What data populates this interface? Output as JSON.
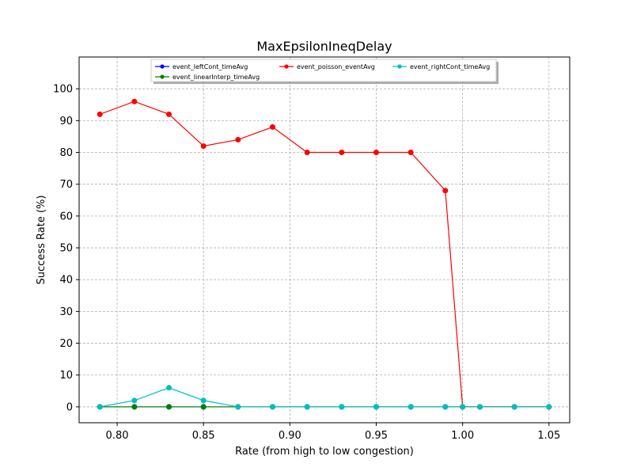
{
  "chart_data": {
    "type": "line",
    "title": "MaxEpsilonIneqDelay",
    "xlabel": "Rate (from high to low congestion)",
    "ylabel": "Success Rate (%)",
    "xlim": [
      0.778,
      1.062
    ],
    "ylim": [
      -5,
      110
    ],
    "x_ticks": [
      "0.80",
      "0.85",
      "0.90",
      "0.95",
      "1.00",
      "1.05"
    ],
    "x_tick_values": [
      0.8,
      0.85,
      0.9,
      0.95,
      1.0,
      1.05
    ],
    "y_ticks": [
      "0",
      "10",
      "20",
      "30",
      "40",
      "50",
      "60",
      "70",
      "80",
      "90",
      "100"
    ],
    "y_tick_values": [
      0,
      10,
      20,
      30,
      40,
      50,
      60,
      70,
      80,
      90,
      100
    ],
    "grid": true,
    "legend_position": "top-center",
    "x": [
      0.79,
      0.81,
      0.83,
      0.85,
      0.87,
      0.89,
      0.91,
      0.93,
      0.95,
      0.97,
      0.99,
      1.0,
      1.01,
      1.03,
      1.05
    ],
    "series": [
      {
        "name": "event_leftCont_timeAvg",
        "color": "#0000ff",
        "values": [
          0,
          0,
          0,
          0,
          0,
          0,
          0,
          0,
          0,
          0,
          0,
          0,
          0,
          0,
          0
        ]
      },
      {
        "name": "event_linearInterp_timeAvg",
        "color": "#008000",
        "values": [
          0,
          0,
          0,
          0,
          0,
          0,
          0,
          0,
          0,
          0,
          0,
          0,
          0,
          0,
          0
        ]
      },
      {
        "name": "event_poisson_eventAvg",
        "color": "#ff0000",
        "values": [
          92,
          96,
          92,
          82,
          84,
          88,
          80,
          80,
          80,
          80,
          68,
          0,
          0,
          0,
          0
        ]
      },
      {
        "name": "event_rightCont_timeAvg",
        "color": "#00bfbf",
        "values": [
          0,
          2,
          6,
          2,
          0,
          0,
          0,
          0,
          0,
          0,
          0,
          0,
          0,
          0,
          0
        ]
      }
    ]
  }
}
